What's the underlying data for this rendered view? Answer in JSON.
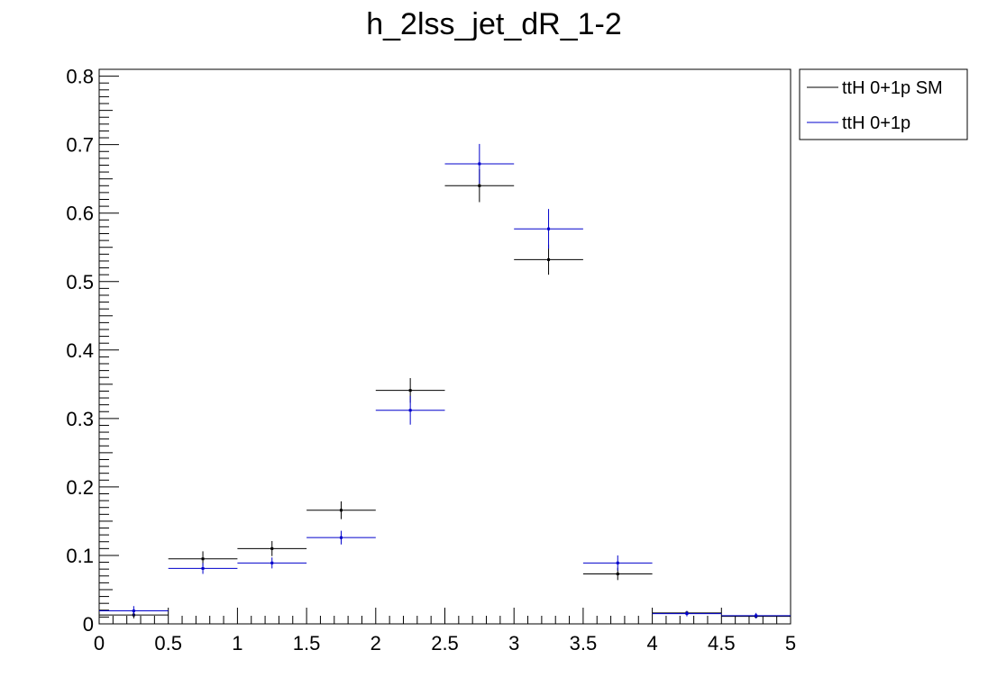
{
  "chart_data": {
    "type": "scatter",
    "title": "h_2lss_jet_dR_1-2",
    "xlabel": "",
    "ylabel": "",
    "xlim": [
      0,
      5
    ],
    "ylim": [
      0,
      0.81
    ],
    "x_ticks": [
      "0",
      "0.5",
      "1",
      "1.5",
      "2",
      "2.5",
      "3",
      "3.5",
      "4",
      "4.5",
      "5"
    ],
    "y_ticks": [
      "0",
      "0.1",
      "0.2",
      "0.3",
      "0.4",
      "0.5",
      "0.6",
      "0.7",
      "0.8"
    ],
    "grid": false,
    "legend_position": "top-right, outside plot",
    "bins": [
      0,
      0.5,
      1,
      1.5,
      2,
      2.5,
      3,
      3.5,
      4,
      4.5,
      5
    ],
    "series": [
      {
        "name": "ttH 0+1p SM",
        "color": "#000000",
        "values": [
          0.013,
          0.095,
          0.11,
          0.166,
          0.341,
          0.64,
          0.532,
          0.073,
          0.016,
          0.011
        ],
        "errors": [
          0.005,
          0.011,
          0.011,
          0.013,
          0.018,
          0.024,
          0.022,
          0.009,
          0.003,
          0.003
        ]
      },
      {
        "name": "ttH 0+1p",
        "color": "#0000cc",
        "values": [
          0.019,
          0.081,
          0.089,
          0.126,
          0.312,
          0.672,
          0.577,
          0.089,
          0.015,
          0.012
        ],
        "errors": [
          0.007,
          0.008,
          0.008,
          0.01,
          0.021,
          0.029,
          0.029,
          0.011,
          0.004,
          0.004
        ]
      }
    ]
  }
}
